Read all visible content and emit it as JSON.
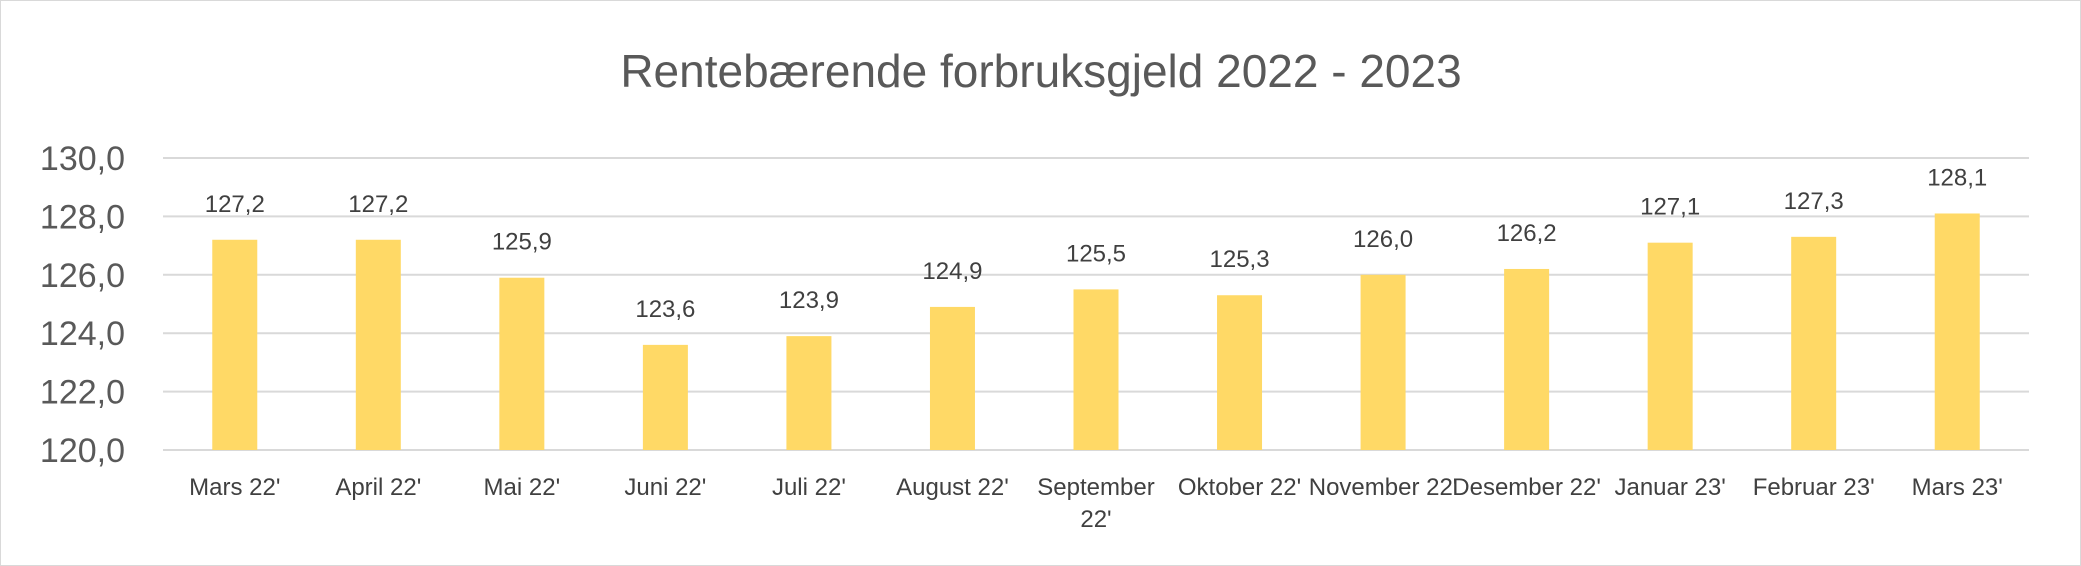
{
  "chart_data": {
    "type": "bar",
    "title": "Rentebærende forbruksgjeld 2022 - 2023",
    "xlabel": "",
    "ylabel": "",
    "categories": [
      "Mars 22'",
      "April 22'",
      "Mai 22'",
      "Juni 22'",
      "Juli 22'",
      "August 22'",
      "September 22'",
      "Oktober 22'",
      "November 22'",
      "Desember 22'",
      "Januar 23'",
      "Februar 23'",
      "Mars 23'"
    ],
    "values": [
      127.2,
      127.2,
      125.9,
      123.6,
      123.9,
      124.9,
      125.5,
      125.3,
      126.0,
      126.2,
      127.1,
      127.3,
      128.1
    ],
    "data_labels": [
      "127,2",
      "127,2",
      "125,9",
      "123,6",
      "123,9",
      "124,9",
      "125,5",
      "125,3",
      "126,0",
      "126,2",
      "127,1",
      "127,3",
      "128,1"
    ],
    "ylim": [
      120,
      130
    ],
    "yticks": [
      120,
      122,
      124,
      126,
      128,
      130
    ],
    "ytick_labels": [
      "120,0",
      "122,0",
      "124,0",
      "126,0",
      "128,0",
      "130,0"
    ],
    "grid": true,
    "legend": "none",
    "colors": {
      "bar": "#FFD966",
      "grid": "#D9D9D9",
      "text": "#595959"
    }
  }
}
